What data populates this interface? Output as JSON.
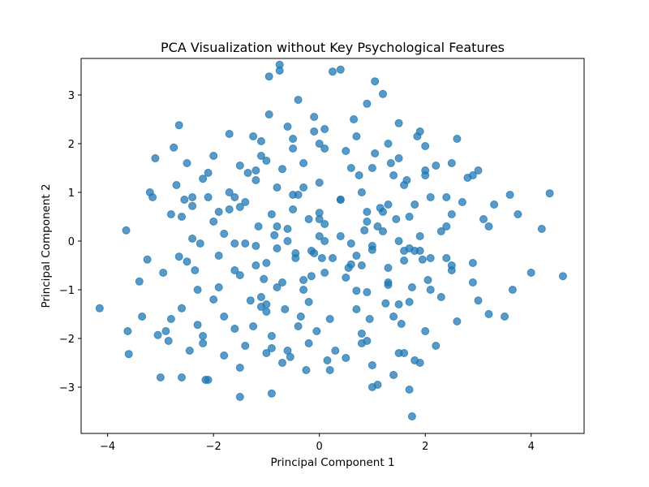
{
  "chart_data": {
    "type": "scatter",
    "title": "PCA Visualization without Key Psychological Features",
    "xlabel": "Principal Component 1",
    "ylabel": "Principal Component 2",
    "xlim": [
      -4.5,
      5.0
    ],
    "ylim": [
      -3.95,
      3.75
    ],
    "xticks": [
      -4,
      -2,
      0,
      2,
      4
    ],
    "yticks": [
      -3,
      -2,
      -1,
      0,
      1,
      2,
      3
    ],
    "grid": false,
    "legend": "none",
    "marker_color": "#1f77b4",
    "marker_alpha": 0.75,
    "series": [
      {
        "x": [
          -4.15,
          -3.65,
          -3.62,
          -3.6,
          -3.4,
          -3.35,
          -3.25,
          -3.2,
          -3.15,
          -3.1,
          -3.05,
          -3.0,
          -2.95,
          -2.9,
          -2.85,
          -2.8,
          -2.75,
          -2.7,
          -2.65,
          -2.6,
          -2.55,
          -2.5,
          -2.45,
          -2.4,
          -2.35,
          -2.3,
          -2.25,
          -2.2,
          -2.15,
          -2.1,
          -1.3,
          -1.25,
          -1.2,
          -1.15,
          -1.1,
          -1.05,
          -1.0,
          -0.95,
          -0.9,
          -0.85,
          -0.8,
          -0.75,
          -0.7,
          -0.65,
          -0.6,
          -0.55,
          -0.5,
          -0.45,
          -0.4,
          -0.35,
          -0.3,
          -0.25,
          -0.2,
          -0.15,
          -0.1,
          -0.05,
          0.0,
          0.05,
          0.1,
          0.15,
          0.6,
          0.65,
          0.7,
          0.75,
          0.8,
          0.85,
          0.9,
          0.95,
          1.0,
          1.05,
          1.1,
          1.15,
          1.2,
          1.25,
          1.3,
          1.35,
          1.4,
          1.45,
          1.5,
          1.55,
          1.6,
          1.65,
          1.7,
          1.75,
          1.8,
          1.85,
          1.9,
          1.95,
          2.0,
          2.05,
          3.0,
          3.1,
          3.2,
          3.3,
          3.5,
          3.6,
          3.65,
          3.75,
          4.0,
          4.2,
          4.35,
          4.6,
          -1.5,
          -0.9,
          1.75,
          -0.75,
          0.4,
          1.05,
          0.25,
          -0.95,
          -2.6,
          -2.65,
          -2.1,
          -2.1,
          1.0,
          -0.1,
          -1.8,
          -1.7,
          -1.6,
          -1.5,
          -1.4,
          -1.35,
          -1.25,
          -1.0,
          -0.8,
          -0.6,
          -0.45,
          -0.3,
          -0.15,
          0.1,
          0.25,
          0.4,
          0.55,
          0.7,
          0.9,
          1.1,
          1.3,
          1.5,
          1.7,
          1.9,
          2.1,
          2.3,
          2.5,
          2.7,
          2.9,
          -1.9,
          -2.0,
          -1.6,
          -1.2,
          -0.8,
          -0.4,
          0.0,
          0.4,
          0.8,
          1.2,
          1.6,
          2.0,
          2.4,
          2.8,
          -2.3,
          -1.9,
          -1.5,
          -1.1,
          -0.7,
          -0.3,
          0.1,
          0.5,
          0.9,
          1.3,
          1.7,
          2.1,
          2.5,
          2.9,
          -2.5,
          -2.0,
          -1.5,
          -1.0,
          -0.5,
          0.0,
          0.5,
          1.0,
          1.5,
          2.0,
          2.5,
          3.0,
          -2.8,
          -2.2,
          -1.6,
          -1.0,
          -0.4,
          0.2,
          0.8,
          1.4,
          2.0,
          2.6,
          3.2,
          -2.4,
          -1.8,
          -1.2,
          -0.6,
          0.0,
          0.6,
          1.2,
          1.8,
          2.4,
          -2.2,
          -1.4,
          -0.9,
          -0.2,
          0.3,
          0.9,
          1.5,
          2.2,
          -1.7,
          -1.1,
          -0.5,
          0.1,
          0.7,
          1.3,
          1.9,
          2.6,
          -1.5,
          -0.7,
          0.2,
          1.0,
          1.8,
          -1.9,
          -1.0,
          -0.1,
          0.8,
          1.6,
          2.4,
          -2.6,
          -1.7,
          -0.9,
          0.0,
          0.9,
          1.7,
          2.5,
          -1.2,
          -0.3,
          0.6,
          1.4,
          2.2,
          -2.0,
          -1.1,
          -0.2,
          0.7,
          1.5,
          2.3,
          -1.6,
          -0.8,
          0.1,
          1.0,
          1.9,
          -2.4,
          -1.4,
          -0.5,
          0.4,
          1.3,
          2.1,
          2.9,
          -1.8,
          -0.6,
          0.5,
          1.6
        ],
        "y": [
          -1.38,
          0.22,
          -1.85,
          -2.32,
          -0.83,
          -1.55,
          -0.38,
          1.0,
          0.9,
          1.7,
          -1.93,
          -2.8,
          -0.65,
          -1.85,
          -2.05,
          0.55,
          1.92,
          1.15,
          2.38,
          -1.38,
          0.85,
          -0.42,
          -2.25,
          0.72,
          -0.6,
          -1.72,
          -0.05,
          1.28,
          -2.85,
          0.9,
          -1.22,
          2.15,
          -0.5,
          0.3,
          1.75,
          -0.78,
          -2.3,
          2.6,
          -1.95,
          0.12,
          -0.95,
          3.62,
          1.48,
          -1.4,
          2.35,
          -2.38,
          0.65,
          -0.25,
          2.9,
          -1.55,
          1.1,
          -2.65,
          0.45,
          -0.72,
          2.25,
          -1.85,
          0.58,
          -0.35,
          1.9,
          -2.45,
          -0.48,
          2.5,
          -1.02,
          1.35,
          -2.1,
          0.22,
          2.82,
          -1.6,
          -0.18,
          1.8,
          -2.95,
          0.68,
          3.02,
          -1.28,
          -0.55,
          1.6,
          -2.75,
          0.45,
          2.42,
          -1.7,
          -0.2,
          1.25,
          -3.05,
          -0.95,
          0.75,
          2.15,
          -2.5,
          -0.38,
          1.45,
          -0.8,
          -1.22,
          0.45,
          0.3,
          0.75,
          -1.55,
          0.95,
          -1.0,
          0.55,
          -0.65,
          0.25,
          0.98,
          -0.72,
          -3.2,
          -3.13,
          -3.6,
          3.5,
          3.52,
          3.28,
          3.48,
          3.38,
          -2.8,
          -0.32,
          1.4,
          -2.85,
          -3.0,
          2.55,
          -1.55,
          1.0,
          -0.6,
          0.7,
          -0.05,
          1.4,
          -1.75,
          -1.3,
          0.3,
          0.0,
          -0.35,
          -0.8,
          -0.2,
          0.35,
          -0.35,
          0.1,
          -0.55,
          -0.3,
          0.4,
          0.3,
          -0.85,
          0.0,
          -0.15,
          0.1,
          -0.35,
          0.2,
          -0.6,
          0.8,
          -0.45,
          0.6,
          0.4,
          0.9,
          1.25,
          1.1,
          0.95,
          1.2,
          0.85,
          1.0,
          0.6,
          1.15,
          1.35,
          0.9,
          1.3,
          -1.0,
          -0.95,
          -0.7,
          -1.15,
          -0.85,
          -1.0,
          -0.65,
          -0.75,
          -1.05,
          -0.9,
          -1.25,
          -1.0,
          -0.5,
          -0.85,
          1.6,
          1.75,
          1.55,
          1.65,
          1.9,
          2.0,
          1.85,
          1.5,
          1.7,
          1.95,
          1.6,
          1.45,
          -1.6,
          -1.95,
          -1.8,
          -1.45,
          -1.75,
          -1.6,
          -1.9,
          -1.55,
          -1.85,
          -1.65,
          -1.5,
          0.05,
          0.15,
          -0.1,
          0.25,
          0.1,
          -0.05,
          0.2,
          -0.2,
          0.3,
          -2.1,
          -2.15,
          -2.2,
          -2.1,
          -2.25,
          -2.05,
          -2.3,
          -2.15,
          2.2,
          2.05,
          2.1,
          2.3,
          2.15,
          2.0,
          2.25,
          2.1,
          -2.6,
          -2.5,
          -2.65,
          -2.55,
          -2.45,
          -0.3,
          -0.45,
          -0.25,
          -0.5,
          -0.4,
          -0.35,
          0.5,
          0.65,
          0.55,
          0.45,
          0.6,
          0.5,
          0.55,
          1.45,
          1.6,
          1.5,
          1.35,
          1.55,
          -1.2,
          -1.35,
          -1.25,
          -1.4,
          -1.3,
          -1.15,
          -0.05,
          -0.15,
          0.0,
          -0.1,
          -0.2,
          0.9,
          0.8,
          0.95,
          0.85,
          0.75,
          0.9,
          1.35,
          -2.35,
          -2.25,
          -2.4,
          -2.3
        ]
      }
    ]
  }
}
